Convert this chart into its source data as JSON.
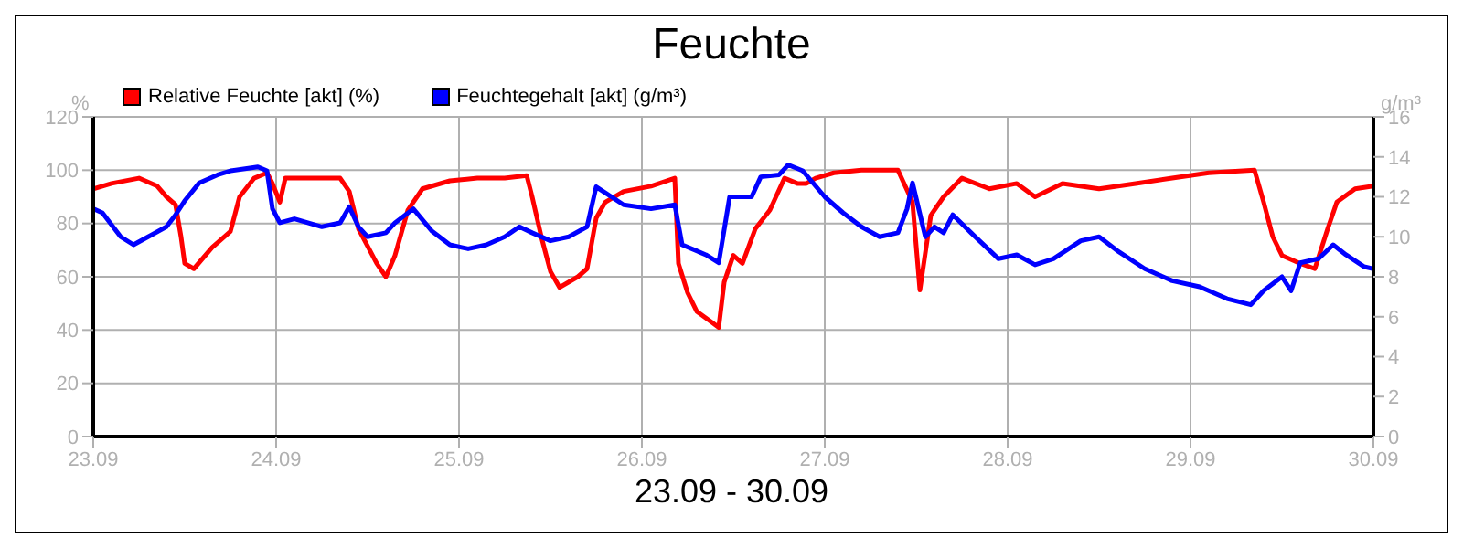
{
  "chart_data": {
    "type": "line",
    "title": "Feuchte",
    "xlabel": "23.09 - 30.09",
    "ylabel": "%",
    "y2label": "g/m³",
    "xlim": [
      "--09-23",
      "--09-30"
    ],
    "xticks": [
      {
        "value": "--09-23",
        "label": "23.09"
      },
      {
        "value": "--09-24",
        "label": "24.09"
      },
      {
        "value": "--09-25",
        "label": "25.09"
      },
      {
        "value": "--09-26",
        "label": "26.09"
      },
      {
        "value": "--09-27",
        "label": "27.09"
      },
      {
        "value": "--09-28",
        "label": "28.09"
      },
      {
        "value": "--09-29",
        "label": "29.09"
      },
      {
        "value": "--09-30",
        "label": "30.09"
      }
    ],
    "ylim": [
      0,
      120
    ],
    "yticks": [
      0,
      20,
      40,
      60,
      80,
      100,
      120
    ],
    "y2lim": [
      0,
      16
    ],
    "y2ticks": [
      0,
      2,
      4,
      6,
      8,
      10,
      12,
      14,
      16
    ],
    "grid": true,
    "legend": "top left",
    "marker": "none",
    "line_style": "solid",
    "series": [
      {
        "name": "Relative Feuchte [akt] (%)",
        "color": "#ff0000",
        "x": [
          "--09-23T00:00",
          "--09-23T02:24",
          "--09-23T06:00",
          "--09-23T08:24",
          "--09-23T09:36",
          "--09-23T10:48",
          "--09-23T11:31",
          "--09-23T12:00",
          "--09-23T13:12",
          "--09-23T15:36",
          "--09-23T18:00",
          "--09-23T19:12",
          "--09-23T21:07",
          "--09-23T22:48",
          "--09-23T23:31",
          "--09-24T00:29",
          "--09-24T01:12",
          "--09-24T04:48",
          "--09-24T08:24",
          "--09-24T09:36",
          "--09-24T10:48",
          "--09-24T13:12",
          "--09-24T14:24",
          "--09-24T15:36",
          "--09-24T17:17",
          "--09-24T19:12",
          "--09-24T22:48",
          "--09-25T02:24",
          "--09-25T06:00",
          "--09-25T08:53",
          "--09-25T09:36",
          "--09-25T10:48",
          "--09-25T12:00",
          "--09-25T13:12",
          "--09-25T15:36",
          "--09-25T16:48",
          "--09-25T18:00",
          "--09-25T19:12",
          "--09-25T21:36",
          "--09-26T01:12",
          "--09-26T04:19",
          "--09-26T04:48",
          "--09-26T06:00",
          "--09-26T07:12",
          "--09-26T09:07",
          "--09-26T10:05",
          "--09-26T10:48",
          "--09-26T12:00",
          "--09-26T13:12",
          "--09-26T14:53",
          "--09-26T16:48",
          "--09-26T18:43",
          "--09-26T20:24",
          "--09-26T21:36",
          "--09-26T22:48",
          "--09-27T01:12",
          "--09-27T04:48",
          "--09-27T09:36",
          "--09-27T11:31",
          "--09-27T12:29",
          "--09-27T13:55",
          "--09-27T15:36",
          "--09-27T18:00",
          "--09-27T21:36",
          "--09-28T01:12",
          "--09-28T03:36",
          "--09-28T07:12",
          "--09-28T12:00",
          "--09-28T16:48",
          "--09-28T21:36",
          "--09-29T02:24",
          "--09-29T08:24",
          "--09-29T09:36",
          "--09-29T10:48",
          "--09-29T12:00",
          "--09-29T14:24",
          "--09-29T16:19",
          "--09-29T18:00",
          "--09-29T19:12",
          "--09-29T21:36",
          "--09-30T00:00"
        ],
        "values": [
          93,
          95,
          97,
          94,
          90,
          87,
          75,
          65,
          63,
          71,
          77,
          90,
          97,
          99,
          95,
          88,
          97,
          97,
          97,
          92,
          78,
          65,
          60,
          68,
          85,
          93,
          96,
          97,
          97,
          98,
          90,
          75,
          62,
          56,
          60,
          63,
          82,
          88,
          92,
          94,
          97,
          65,
          54,
          47,
          43,
          41,
          58,
          68,
          65,
          78,
          85,
          97,
          95,
          95,
          97,
          99,
          100,
          100,
          88,
          55,
          83,
          90,
          97,
          93,
          95,
          90,
          95,
          93,
          95,
          97,
          99,
          100,
          88,
          75,
          68,
          65,
          63,
          78,
          88,
          93,
          94
        ]
      },
      {
        "name": "Feuchtegehalt [akt] (g/m³)",
        "color": "#0000ff",
        "axis": "y2",
        "x": [
          "--09-23T00:00",
          "--09-23T01:12",
          "--09-23T03:36",
          "--09-23T05:17",
          "--09-23T07:12",
          "--09-23T09:36",
          "--09-23T10:48",
          "--09-23T12:00",
          "--09-23T13:55",
          "--09-23T16:19",
          "--09-23T18:00",
          "--09-23T21:36",
          "--09-23T22:48",
          "--09-23T23:31",
          "--09-24T00:29",
          "--09-24T02:24",
          "--09-24T06:00",
          "--09-24T08:24",
          "--09-24T09:36",
          "--09-24T10:48",
          "--09-24T12:00",
          "--09-24T14:24",
          "--09-24T15:36",
          "--09-24T18:00",
          "--09-24T20:24",
          "--09-24T22:48",
          "--09-25T01:12",
          "--09-25T03:36",
          "--09-25T06:00",
          "--09-25T07:55",
          "--09-25T09:36",
          "--09-25T12:00",
          "--09-25T14:24",
          "--09-25T16:48",
          "--09-25T18:00",
          "--09-25T19:12",
          "--09-25T21:36",
          "--09-26T01:12",
          "--09-26T04:19",
          "--09-26T05:17",
          "--09-26T08:24",
          "--09-26T10:05",
          "--09-26T11:31",
          "--09-26T14:24",
          "--09-26T15:36",
          "--09-26T18:00",
          "--09-26T19:12",
          "--09-26T21:07",
          "--09-27T00:00",
          "--09-27T02:24",
          "--09-27T04:48",
          "--09-27T07:12",
          "--09-27T09:36",
          "--09-27T10:48",
          "--09-27T11:31",
          "--09-27T13:12",
          "--09-27T14:24",
          "--09-27T15:36",
          "--09-27T16:48",
          "--09-27T19:12",
          "--09-27T22:48",
          "--09-28T01:12",
          "--09-28T03:36",
          "--09-28T06:00",
          "--09-28T09:36",
          "--09-28T12:00",
          "--09-28T14:24",
          "--09-28T18:00",
          "--09-28T21:36",
          "--09-29T01:12",
          "--09-29T04:48",
          "--09-29T07:55",
          "--09-29T09:36",
          "--09-29T12:00",
          "--09-29T13:12",
          "--09-29T14:24",
          "--09-29T16:48",
          "--09-29T18:43",
          "--09-29T20:24",
          "--09-29T22:48",
          "--09-30T00:00"
        ],
        "values": [
          11.4,
          11.2,
          10.0,
          9.6,
          10.0,
          10.5,
          11.1,
          11.8,
          12.7,
          13.1,
          13.3,
          13.5,
          13.3,
          11.4,
          10.7,
          10.9,
          10.5,
          10.7,
          11.5,
          10.5,
          10.0,
          10.2,
          10.7,
          11.4,
          10.3,
          9.6,
          9.4,
          9.6,
          10.0,
          10.5,
          10.2,
          9.8,
          10.0,
          10.5,
          12.5,
          12.2,
          11.6,
          11.4,
          11.6,
          9.6,
          9.1,
          8.7,
          12.0,
          12.0,
          13.0,
          13.1,
          13.6,
          13.3,
          12.0,
          11.2,
          10.5,
          10.0,
          10.2,
          11.4,
          12.7,
          10.0,
          10.5,
          10.2,
          11.1,
          10.2,
          8.9,
          9.1,
          8.6,
          8.9,
          9.8,
          10.0,
          9.3,
          8.4,
          7.8,
          7.5,
          6.9,
          6.6,
          7.3,
          8.0,
          7.3,
          8.7,
          8.9,
          9.6,
          9.1,
          8.5,
          8.4
        ]
      }
    ]
  }
}
